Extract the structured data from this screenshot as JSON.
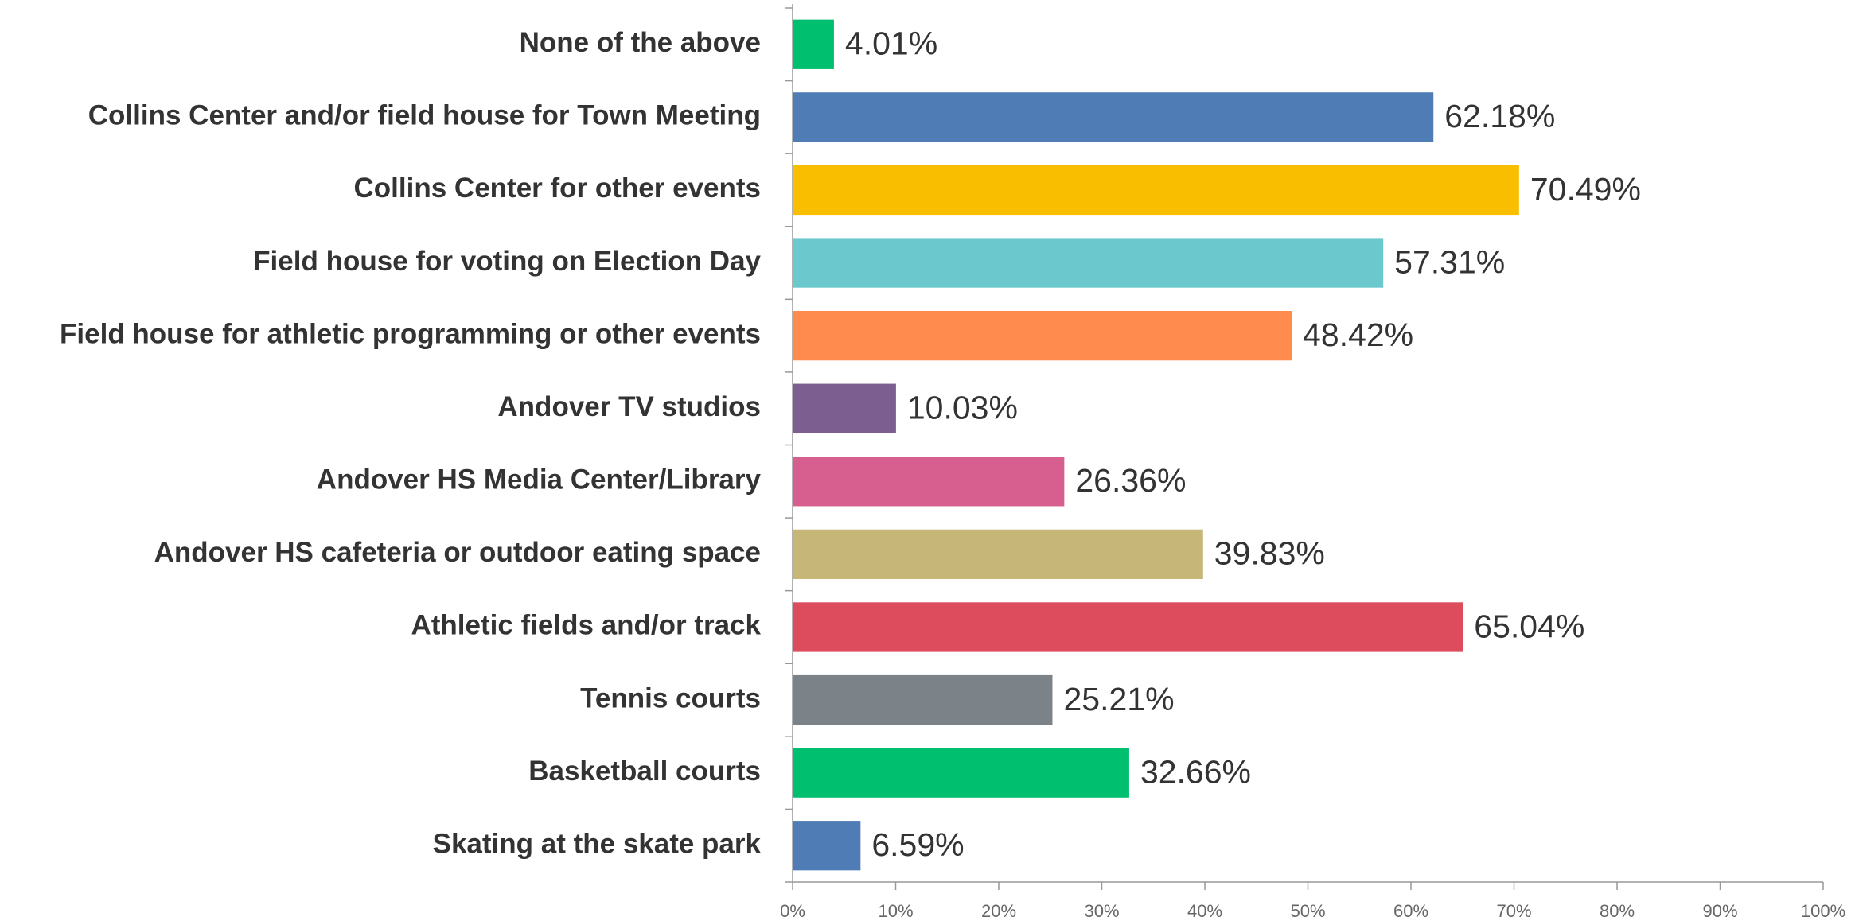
{
  "chart_data": {
    "type": "bar",
    "orientation": "horizontal",
    "categories": [
      "None of the above",
      "Collins Center and/or field house for Town Meeting",
      "Collins Center for other events",
      "Field house for voting on Election Day",
      "Field house for athletic programming or other events",
      "Andover TV studios",
      "Andover HS Media Center/Library",
      "Andover HS cafeteria or outdoor eating space",
      "Athletic fields and/or track",
      "Tennis courts",
      "Basketball courts",
      "Skating at the skate park"
    ],
    "values": [
      4.01,
      62.18,
      70.49,
      57.31,
      48.42,
      10.03,
      26.36,
      39.83,
      65.04,
      25.21,
      32.66,
      6.59
    ],
    "value_labels": [
      "4.01%",
      "62.18%",
      "70.49%",
      "57.31%",
      "48.42%",
      "10.03%",
      "26.36%",
      "39.83%",
      "65.04%",
      "25.21%",
      "32.66%",
      "6.59%"
    ],
    "colors": [
      "#00bf6f",
      "#507cb6",
      "#f9be00",
      "#6bc8cd",
      "#ff8b4f",
      "#7d5e90",
      "#d65f8f",
      "#c6b778",
      "#dc4c5c",
      "#7b8288",
      "#00bf6f",
      "#507cb6"
    ],
    "xlim": [
      0,
      100
    ],
    "xticks": [
      {
        "value": 0,
        "label": "0%"
      },
      {
        "value": 10,
        "label": "10%"
      },
      {
        "value": 20,
        "label": "20%"
      },
      {
        "value": 30,
        "label": "30%"
      },
      {
        "value": 40,
        "label": "40%"
      },
      {
        "value": 50,
        "label": "50%"
      },
      {
        "value": 60,
        "label": "60%"
      },
      {
        "value": 70,
        "label": "70%"
      },
      {
        "value": 80,
        "label": "80%"
      },
      {
        "value": 90,
        "label": "90%"
      },
      {
        "value": 100,
        "label": "100%"
      }
    ]
  }
}
